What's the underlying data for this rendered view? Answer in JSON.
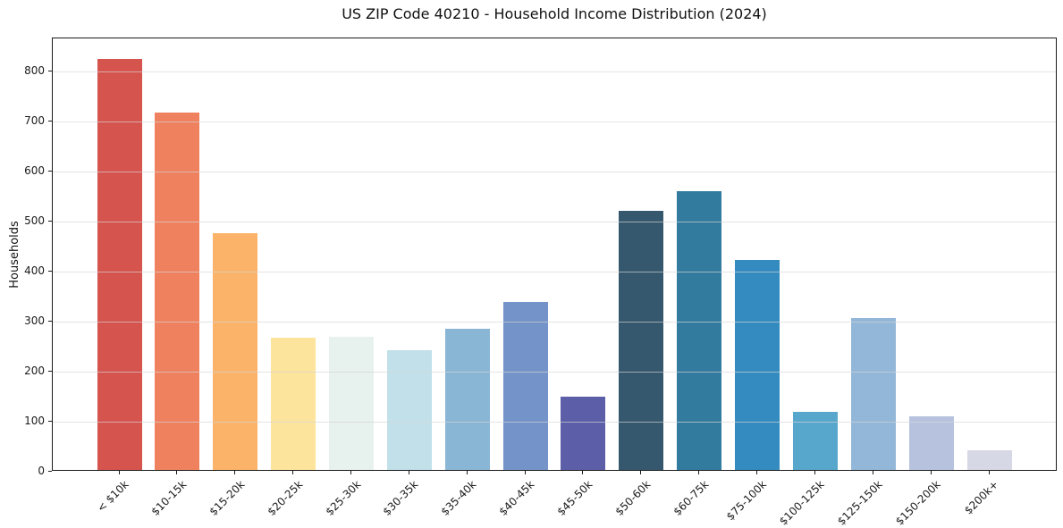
{
  "title": "US ZIP Code 40210 - Household Income Distribution (2024)",
  "chart_data": {
    "type": "bar",
    "title": "US ZIP Code 40210 - Household Income Distribution (2024)",
    "xlabel": "",
    "ylabel": "Households",
    "categories": [
      "< $10k",
      "$10-15k",
      "$15-20k",
      "$20-25k",
      "$25-30k",
      "$30-35k",
      "$35-40k",
      "$40-45k",
      "$45-50k",
      "$50-60k",
      "$60-75k",
      "$75-100k",
      "$100-125k",
      "$125-150k",
      "$150-200k",
      "$200k+"
    ],
    "values": [
      822,
      715,
      473,
      265,
      266,
      240,
      283,
      335,
      147,
      517,
      557,
      419,
      116,
      303,
      108,
      40
    ],
    "bar_colors": [
      "#d6544e",
      "#f0815f",
      "#fab369",
      "#fde49c",
      "#e7f1ee",
      "#c2e0ea",
      "#8ab6d6",
      "#7493c8",
      "#5c5ea7",
      "#36586e",
      "#337b9e",
      "#338bc0",
      "#57a6cb",
      "#92b7d8",
      "#b7c3de",
      "#d7d8e5"
    ],
    "yticks": [
      0,
      100,
      200,
      300,
      400,
      500,
      600,
      700,
      800
    ],
    "ylim": [
      0,
      866
    ],
    "grid": "horizontal",
    "gridline_color": "rgba(214,214,214,0.65)",
    "legend_position": "none",
    "x_tick_rotation_deg": 45
  }
}
